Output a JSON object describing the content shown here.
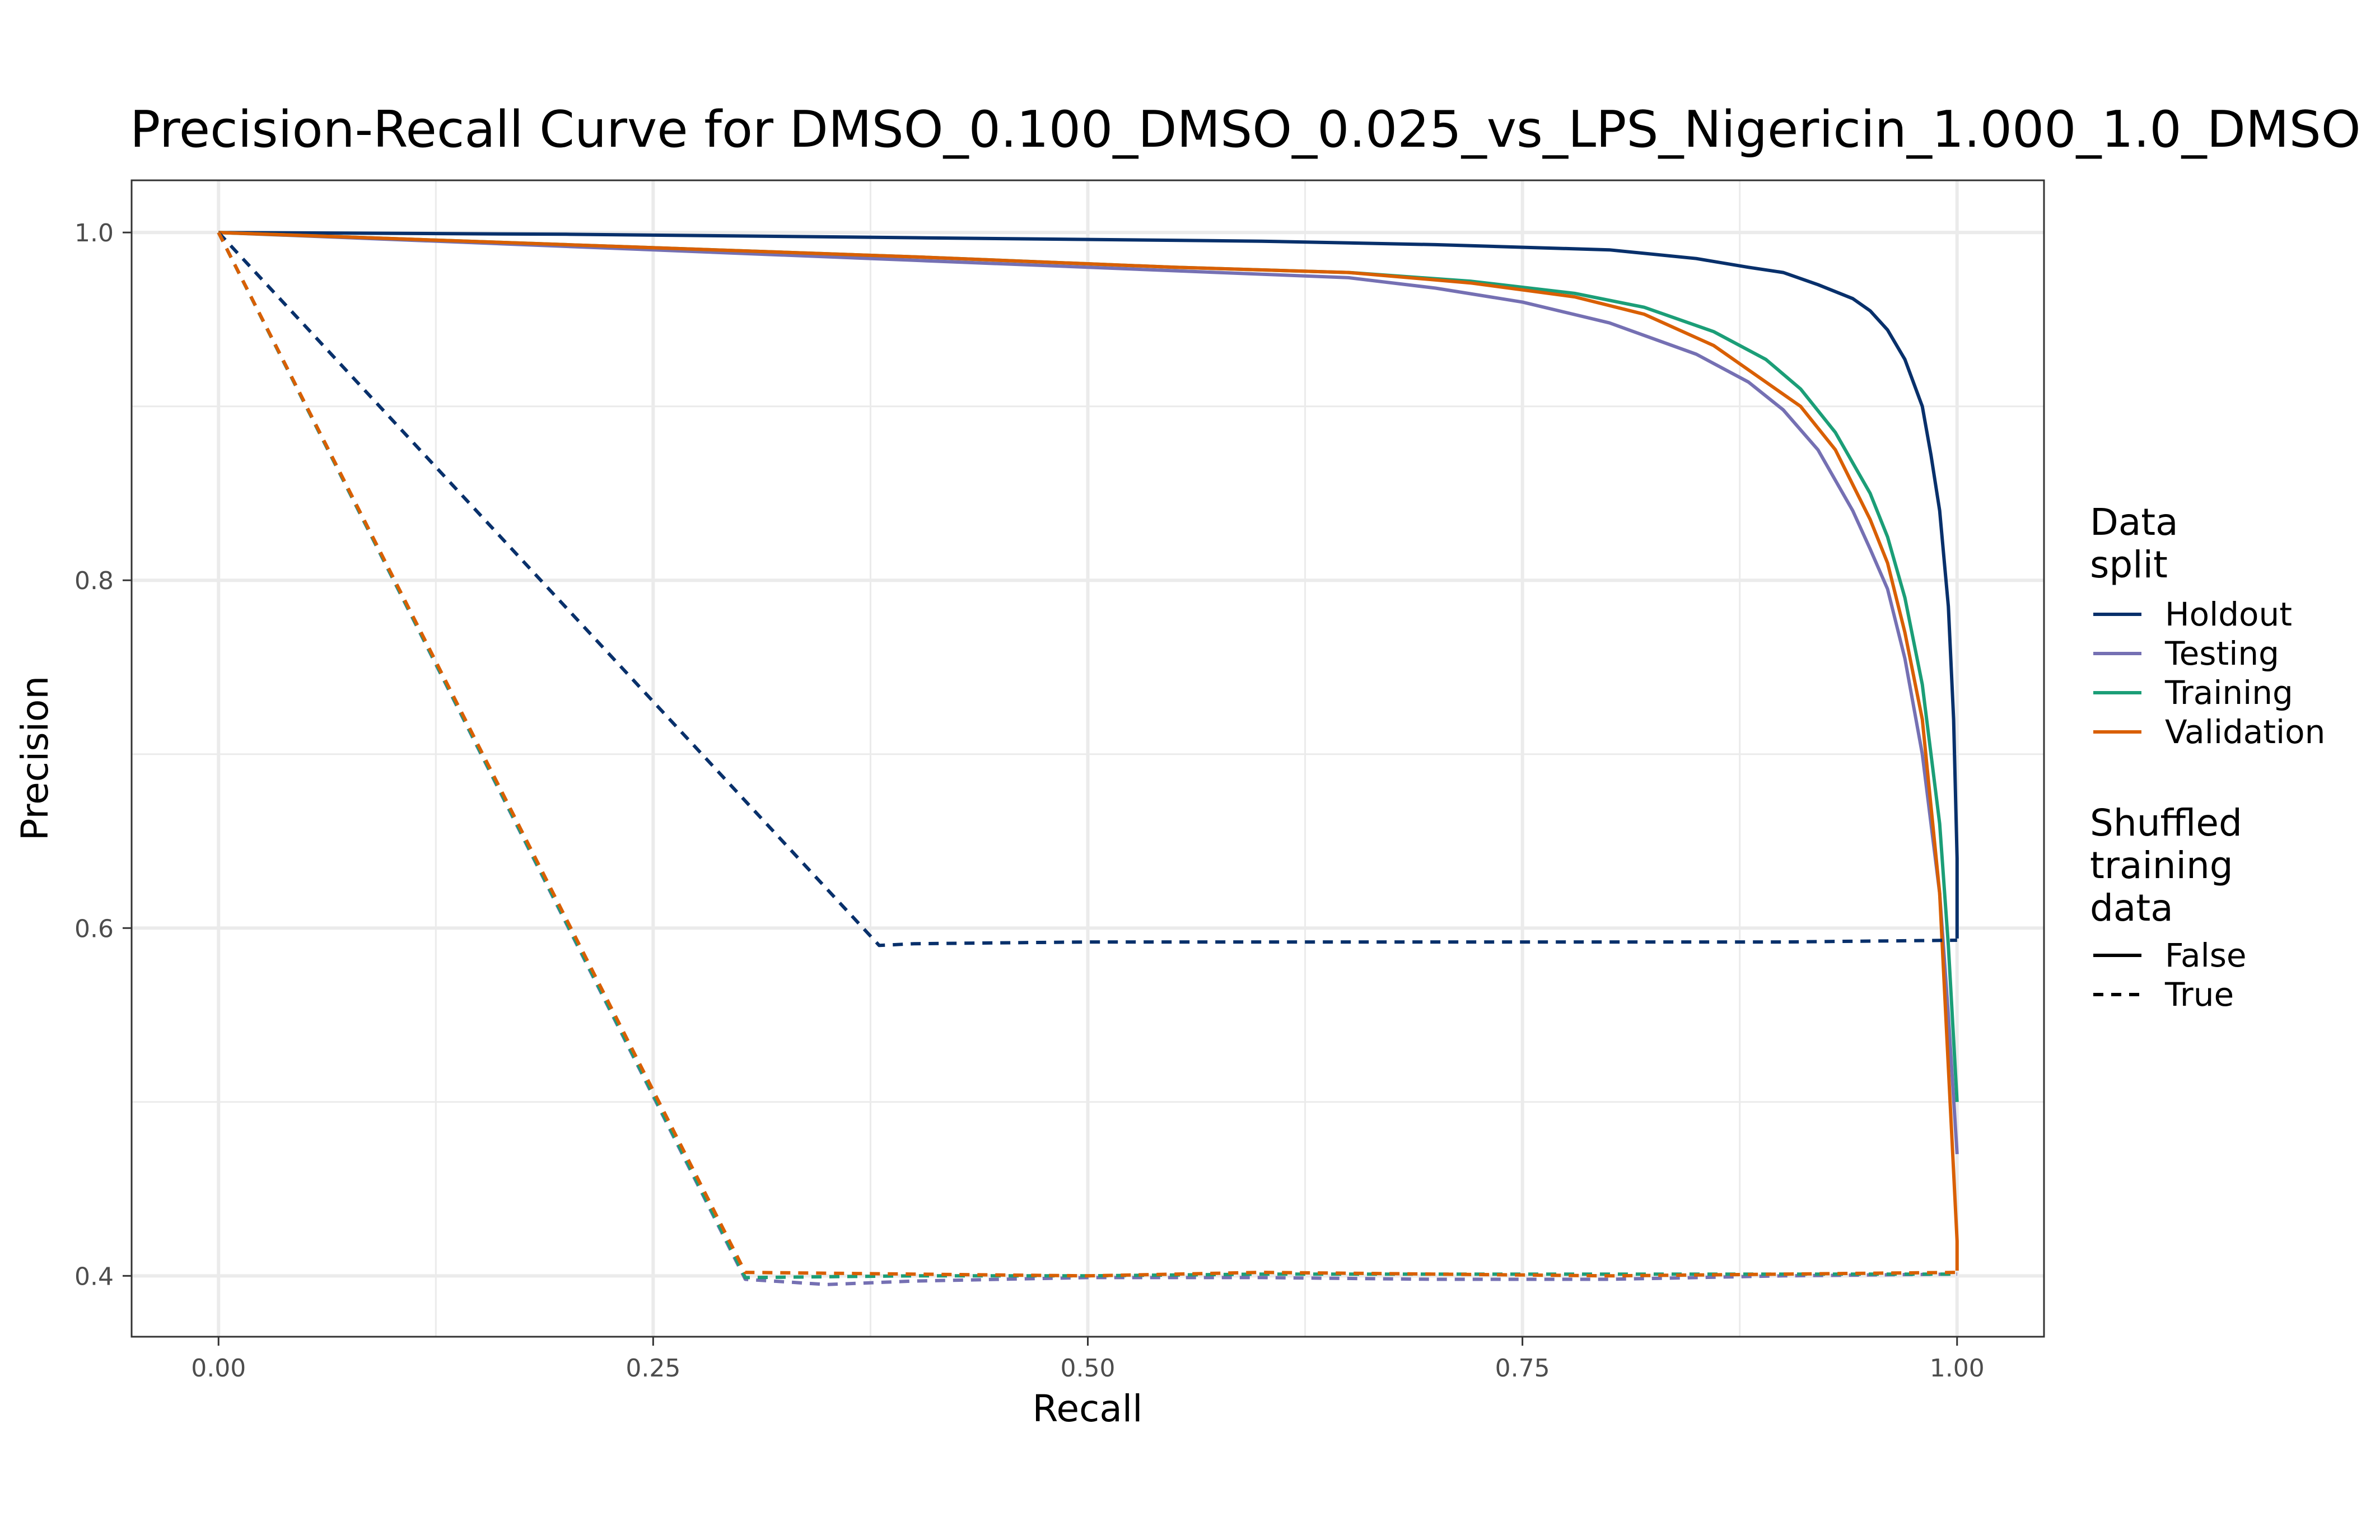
{
  "chart_data": {
    "type": "line",
    "title": "Precision-Recall Curve for DMSO_0.100_DMSO_0.025_vs_LPS_Nigericin_1.000_1.0_DMSO",
    "xlabel": "Recall",
    "ylabel": "Precision",
    "xlim": [
      -0.05,
      1.05
    ],
    "ylim": [
      0.365,
      1.03
    ],
    "x_ticks": [
      "0.00",
      "0.25",
      "0.50",
      "0.75",
      "1.00"
    ],
    "y_ticks": [
      "0.4",
      "0.6",
      "0.8",
      "1.0"
    ],
    "grid": true,
    "legend_placement": "right",
    "legend": {
      "color_title": "Data\nsplit",
      "linetype_title": "Shuffled\ntraining\ndata",
      "linetype_items": [
        "False",
        "True"
      ]
    },
    "series": [
      {
        "name": "Holdout",
        "color": "#08306b",
        "shuffled": "False",
        "x": [
          0,
          0.2,
          0.4,
          0.6,
          0.7,
          0.8,
          0.85,
          0.88,
          0.9,
          0.92,
          0.94,
          0.95,
          0.96,
          0.97,
          0.98,
          0.985,
          0.99,
          0.995,
          0.998,
          1.0,
          1.0
        ],
        "y": [
          1.0,
          0.999,
          0.997,
          0.995,
          0.993,
          0.99,
          0.985,
          0.98,
          0.977,
          0.97,
          0.962,
          0.955,
          0.944,
          0.927,
          0.9,
          0.872,
          0.84,
          0.785,
          0.72,
          0.64,
          0.594
        ]
      },
      {
        "name": "Testing",
        "color": "#7570b3",
        "shuffled": "False",
        "x": [
          0,
          0.2,
          0.4,
          0.55,
          0.65,
          0.7,
          0.75,
          0.8,
          0.85,
          0.88,
          0.9,
          0.92,
          0.94,
          0.95,
          0.96,
          0.97,
          0.98,
          0.99,
          0.995,
          1.0
        ],
        "y": [
          1.0,
          0.992,
          0.984,
          0.978,
          0.974,
          0.968,
          0.96,
          0.948,
          0.93,
          0.914,
          0.898,
          0.875,
          0.84,
          0.818,
          0.795,
          0.755,
          0.7,
          0.62,
          0.55,
          0.47
        ]
      },
      {
        "name": "Training",
        "color": "#1b9e77",
        "shuffled": "False",
        "x": [
          0,
          0.2,
          0.4,
          0.55,
          0.65,
          0.72,
          0.78,
          0.82,
          0.86,
          0.89,
          0.91,
          0.93,
          0.95,
          0.96,
          0.97,
          0.98,
          0.99,
          0.995,
          1.0
        ],
        "y": [
          1.0,
          0.993,
          0.986,
          0.98,
          0.977,
          0.972,
          0.965,
          0.957,
          0.943,
          0.927,
          0.91,
          0.885,
          0.85,
          0.825,
          0.79,
          0.74,
          0.66,
          0.59,
          0.5
        ]
      },
      {
        "name": "Validation",
        "color": "#d95f02",
        "shuffled": "False",
        "x": [
          0,
          0.2,
          0.4,
          0.55,
          0.65,
          0.72,
          0.78,
          0.82,
          0.86,
          0.89,
          0.91,
          0.93,
          0.95,
          0.96,
          0.97,
          0.98,
          0.99,
          0.995,
          1.0,
          1.0
        ],
        "y": [
          1.0,
          0.993,
          0.986,
          0.98,
          0.977,
          0.971,
          0.963,
          0.953,
          0.935,
          0.914,
          0.9,
          0.875,
          0.835,
          0.81,
          0.77,
          0.72,
          0.62,
          0.52,
          0.42,
          0.403
        ]
      },
      {
        "name": "Holdout",
        "color": "#08306b",
        "shuffled": "True",
        "x": [
          0,
          0.38,
          0.4,
          0.5,
          0.6,
          0.7,
          0.8,
          0.9,
          1.0
        ],
        "y": [
          1.0,
          0.59,
          0.591,
          0.592,
          0.592,
          0.592,
          0.592,
          0.592,
          0.593
        ]
      },
      {
        "name": "Testing",
        "color": "#7570b3",
        "shuffled": "True",
        "x": [
          0,
          0.303,
          0.35,
          0.4,
          0.5,
          0.6,
          0.7,
          0.8,
          0.9,
          1.0
        ],
        "y": [
          1.0,
          0.398,
          0.395,
          0.397,
          0.399,
          0.399,
          0.398,
          0.398,
          0.4,
          0.401
        ]
      },
      {
        "name": "Training",
        "color": "#1b9e77",
        "shuffled": "True",
        "x": [
          0,
          0.303,
          0.4,
          0.5,
          0.6,
          0.7,
          0.8,
          0.9,
          1.0
        ],
        "y": [
          1.0,
          0.399,
          0.4,
          0.4,
          0.401,
          0.401,
          0.401,
          0.401,
          0.401
        ]
      },
      {
        "name": "Validation",
        "color": "#d95f02",
        "shuffled": "True",
        "x": [
          0,
          0.303,
          0.4,
          0.5,
          0.6,
          0.7,
          0.8,
          0.9,
          1.0
        ],
        "y": [
          1.0,
          0.402,
          0.401,
          0.4,
          0.402,
          0.401,
          0.4,
          0.401,
          0.402
        ]
      }
    ]
  }
}
